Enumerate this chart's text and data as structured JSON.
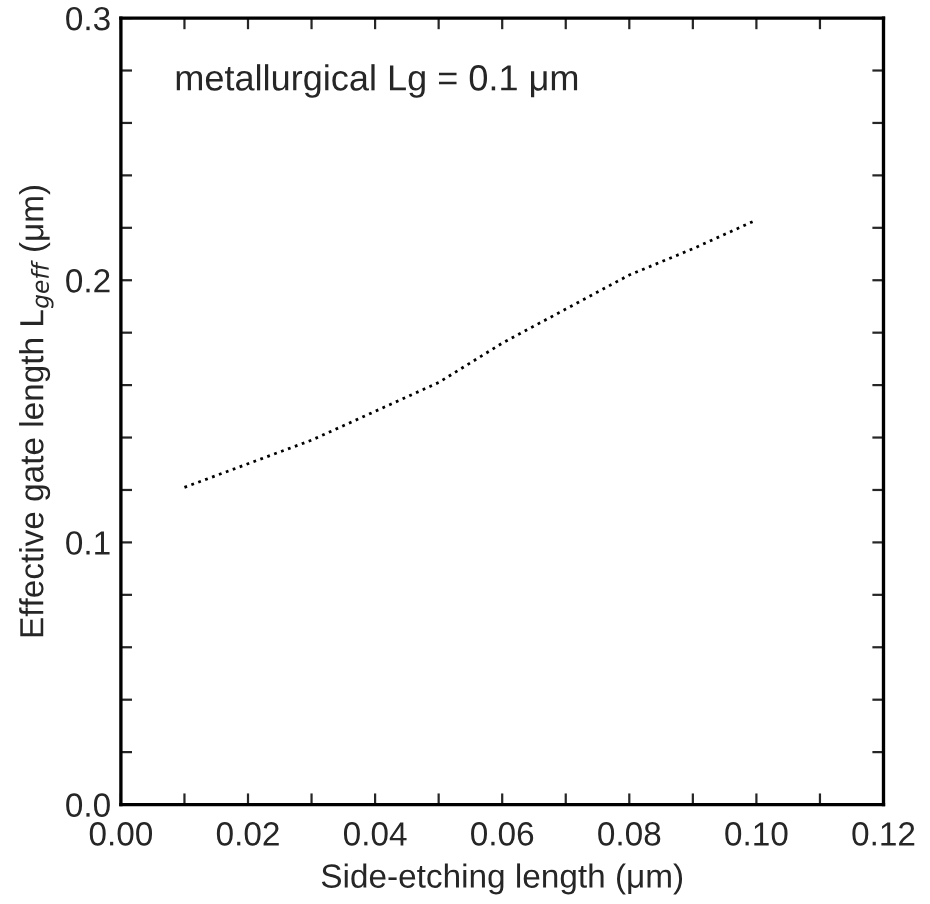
{
  "chart_data": {
    "type": "line",
    "xlabel": "Side-etching length (μm)",
    "ylabel": "Effective gate length L$_{geff}$ (μm)",
    "annotations": [
      "metallurgical Lg = 0.1 μm"
    ],
    "x": [
      0.01,
      0.02,
      0.03,
      0.04,
      0.05,
      0.06,
      0.07,
      0.08,
      0.09,
      0.1
    ],
    "series": [
      {
        "color": "#000000",
        "values": [
          0.121,
          0.13,
          0.139,
          0.15,
          0.161,
          0.176,
          0.189,
          0.202,
          0.212,
          0.223
        ]
      }
    ],
    "xlim": [
      0,
      0.12
    ],
    "ylim": [
      0,
      0.3
    ],
    "xticks": [
      {
        "value": 0,
        "label": "0.00"
      },
      {
        "value": 0.01,
        "label": null
      },
      {
        "value": 0.02,
        "label": "0.02"
      },
      {
        "value": 0.03,
        "label": null
      },
      {
        "value": 0.04,
        "label": "0.04"
      },
      {
        "value": 0.05,
        "label": null
      },
      {
        "value": 0.06,
        "label": "0.06"
      },
      {
        "value": 0.07,
        "label": null
      },
      {
        "value": 0.08,
        "label": "0.08"
      },
      {
        "value": 0.09,
        "label": null
      },
      {
        "value": 0.1,
        "label": "0.10"
      },
      {
        "value": 0.11,
        "label": null
      },
      {
        "value": 0.12,
        "label": "0.12"
      }
    ],
    "yticks": [
      {
        "value": 0,
        "label": "0.0"
      },
      {
        "value": 0.02,
        "label": null
      },
      {
        "value": 0.04,
        "label": null
      },
      {
        "value": 0.06,
        "label": null
      },
      {
        "value": 0.08,
        "label": null
      },
      {
        "value": 0.1,
        "label": "0.1"
      },
      {
        "value": 0.12,
        "label": null
      },
      {
        "value": 0.14,
        "label": null
      },
      {
        "value": 0.16,
        "label": null
      },
      {
        "value": 0.18,
        "label": null
      },
      {
        "value": 0.2,
        "label": "0.2"
      },
      {
        "value": 0.22,
        "label": null
      },
      {
        "value": 0.24,
        "label": null
      },
      {
        "value": 0.26,
        "label": null
      },
      {
        "value": 0.28,
        "label": null
      },
      {
        "value": 0.3,
        "label": "0.3"
      }
    ],
    "grid": false,
    "legend": false,
    "marker": "none",
    "line_style": "dotted"
  }
}
